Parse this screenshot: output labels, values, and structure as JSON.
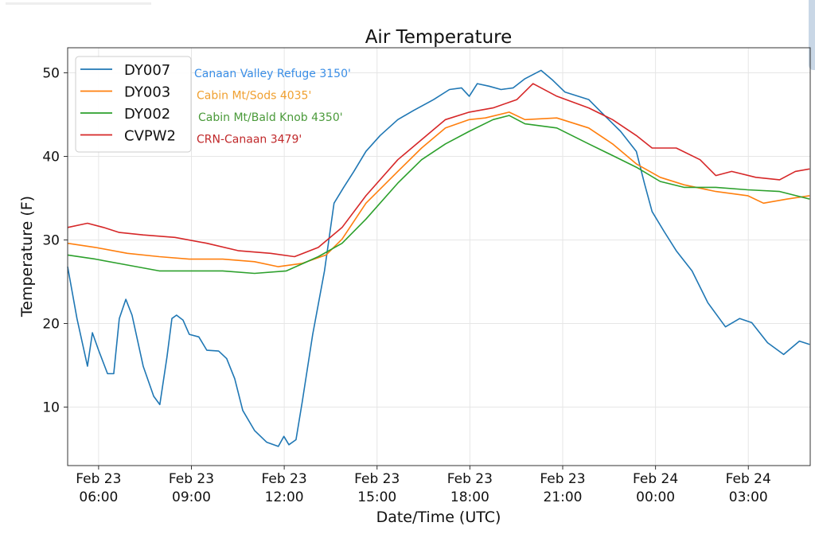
{
  "chart_data": {
    "type": "line",
    "title": "Air Temperature",
    "xlabel": "Date/Time (UTC)",
    "ylabel": "Temperature (F)",
    "x_units": "hours since Feb 23 00:00 UTC",
    "xlim": [
      5.0,
      29.0
    ],
    "ylim": [
      3,
      53
    ],
    "grid": true,
    "legend_placement": "top-left",
    "yticks": [
      {
        "value": 10,
        "label": "10"
      },
      {
        "value": 20,
        "label": "20"
      },
      {
        "value": 30,
        "label": "30"
      },
      {
        "value": 40,
        "label": "40"
      },
      {
        "value": 50,
        "label": "50"
      }
    ],
    "xticks": [
      {
        "value": 6,
        "line1": "Feb 23",
        "line2": "06:00"
      },
      {
        "value": 9,
        "line1": "Feb 23",
        "line2": "09:00"
      },
      {
        "value": 12,
        "line1": "Feb 23",
        "line2": "12:00"
      },
      {
        "value": 15,
        "line1": "Feb 23",
        "line2": "15:00"
      },
      {
        "value": 18,
        "line1": "Feb 23",
        "line2": "18:00"
      },
      {
        "value": 21,
        "line1": "Feb 23",
        "line2": "21:00"
      },
      {
        "value": 24,
        "line1": "Feb 24",
        "line2": "00:00"
      },
      {
        "value": 27,
        "line1": "Feb 24",
        "line2": "03:00"
      }
    ],
    "series": [
      {
        "name": "DY007",
        "annotation": "Canaan Valley Refuge 3150'",
        "color": "#1f77b4",
        "annotation_color": "#3a8ee6",
        "points": [
          [
            5.0,
            26.8
          ],
          [
            5.3,
            20.6
          ],
          [
            5.64,
            14.9
          ],
          [
            5.8,
            18.9
          ],
          [
            6.0,
            16.8
          ],
          [
            6.29,
            14
          ],
          [
            6.49,
            14
          ],
          [
            6.67,
            20.6
          ],
          [
            6.88,
            22.9
          ],
          [
            7.08,
            21
          ],
          [
            7.44,
            14.9
          ],
          [
            7.78,
            11.3
          ],
          [
            7.98,
            10.3
          ],
          [
            8.21,
            16
          ],
          [
            8.37,
            20.6
          ],
          [
            8.52,
            21
          ],
          [
            8.73,
            20.4
          ],
          [
            8.93,
            18.7
          ],
          [
            9.24,
            18.4
          ],
          [
            9.5,
            16.8
          ],
          [
            9.88,
            16.7
          ],
          [
            10.14,
            15.8
          ],
          [
            10.4,
            13.4
          ],
          [
            10.66,
            9.6
          ],
          [
            11.04,
            7.2
          ],
          [
            11.43,
            5.8
          ],
          [
            11.81,
            5.3
          ],
          [
            11.99,
            6.5
          ],
          [
            12.15,
            5.5
          ],
          [
            12.38,
            6.1
          ],
          [
            12.58,
            10.6
          ],
          [
            12.92,
            18.7
          ],
          [
            13.3,
            26.3
          ],
          [
            13.61,
            34.4
          ],
          [
            13.92,
            36.3
          ],
          [
            14.25,
            38.2
          ],
          [
            14.64,
            40.6
          ],
          [
            15.1,
            42.5
          ],
          [
            15.67,
            44.4
          ],
          [
            16.18,
            45.5
          ],
          [
            16.83,
            46.8
          ],
          [
            17.34,
            48
          ],
          [
            17.73,
            48.2
          ],
          [
            17.98,
            47.2
          ],
          [
            18.24,
            48.7
          ],
          [
            18.62,
            48.4
          ],
          [
            19.01,
            48
          ],
          [
            19.4,
            48.2
          ],
          [
            19.78,
            49.3
          ],
          [
            20.3,
            50.3
          ],
          [
            20.68,
            49.1
          ],
          [
            21.07,
            47.7
          ],
          [
            21.84,
            46.8
          ],
          [
            22.35,
            44.9
          ],
          [
            22.87,
            43
          ],
          [
            23.38,
            40.6
          ],
          [
            23.64,
            36.8
          ],
          [
            23.89,
            33.4
          ],
          [
            24.28,
            31
          ],
          [
            24.67,
            28.7
          ],
          [
            25.18,
            26.3
          ],
          [
            25.69,
            22.5
          ],
          [
            26.26,
            19.6
          ],
          [
            26.72,
            20.6
          ],
          [
            27.11,
            20.1
          ],
          [
            27.62,
            17.7
          ],
          [
            28.14,
            16.3
          ],
          [
            28.65,
            17.9
          ],
          [
            28.98,
            17.5
          ]
        ]
      },
      {
        "name": "DY003",
        "annotation": "Cabin Mt/Sods 4035'",
        "color": "#ff7f0e",
        "annotation_color": "#f0a030",
        "points": [
          [
            5.0,
            29.6
          ],
          [
            5.9,
            29.1
          ],
          [
            6.93,
            28.4
          ],
          [
            7.96,
            28
          ],
          [
            8.93,
            27.7
          ],
          [
            10.01,
            27.7
          ],
          [
            11.04,
            27.4
          ],
          [
            11.81,
            26.8
          ],
          [
            12.58,
            27.2
          ],
          [
            13.35,
            28.2
          ],
          [
            13.87,
            30.1
          ],
          [
            14.64,
            34.4
          ],
          [
            15.67,
            38.2
          ],
          [
            16.44,
            41
          ],
          [
            17.21,
            43.4
          ],
          [
            17.98,
            44.4
          ],
          [
            18.5,
            44.6
          ],
          [
            19.27,
            45.3
          ],
          [
            19.78,
            44.4
          ],
          [
            20.81,
            44.6
          ],
          [
            21.84,
            43.4
          ],
          [
            22.61,
            41.5
          ],
          [
            23.38,
            39.1
          ],
          [
            24.15,
            37.5
          ],
          [
            24.92,
            36.6
          ],
          [
            25.95,
            35.8
          ],
          [
            26.98,
            35.3
          ],
          [
            27.49,
            34.4
          ],
          [
            28.26,
            34.9
          ],
          [
            28.98,
            35.3
          ]
        ]
      },
      {
        "name": "DY002",
        "annotation": "Cabin Mt/Bald Knob 4350'",
        "color": "#2ca02c",
        "annotation_color": "#4a9a3a",
        "points": [
          [
            5.0,
            28.2
          ],
          [
            5.9,
            27.7
          ],
          [
            6.93,
            27
          ],
          [
            7.96,
            26.3
          ],
          [
            8.98,
            26.3
          ],
          [
            10.01,
            26.3
          ],
          [
            11.04,
            26
          ],
          [
            12.07,
            26.3
          ],
          [
            13.1,
            28
          ],
          [
            13.87,
            29.6
          ],
          [
            14.64,
            32.5
          ],
          [
            15.67,
            36.8
          ],
          [
            16.44,
            39.6
          ],
          [
            17.21,
            41.5
          ],
          [
            17.98,
            43
          ],
          [
            18.75,
            44.4
          ],
          [
            19.27,
            44.9
          ],
          [
            19.78,
            43.9
          ],
          [
            20.81,
            43.4
          ],
          [
            21.84,
            41.5
          ],
          [
            22.61,
            40.1
          ],
          [
            23.38,
            38.7
          ],
          [
            24.15,
            37
          ],
          [
            24.92,
            36.3
          ],
          [
            25.95,
            36.3
          ],
          [
            26.98,
            36
          ],
          [
            28.01,
            35.8
          ],
          [
            28.98,
            34.9
          ]
        ]
      },
      {
        "name": "CVPW2",
        "annotation": "CRN-Canaan 3479'",
        "color": "#d62728",
        "annotation_color": "#c0282a",
        "points": [
          [
            5.0,
            31.5
          ],
          [
            5.64,
            32
          ],
          [
            6.16,
            31.5
          ],
          [
            6.67,
            30.9
          ],
          [
            7.44,
            30.6
          ],
          [
            8.47,
            30.3
          ],
          [
            9.5,
            29.6
          ],
          [
            10.53,
            28.7
          ],
          [
            11.56,
            28.4
          ],
          [
            12.33,
            28
          ],
          [
            13.1,
            29.1
          ],
          [
            13.87,
            31.5
          ],
          [
            14.64,
            35.3
          ],
          [
            15.67,
            39.6
          ],
          [
            16.44,
            42
          ],
          [
            17.21,
            44.4
          ],
          [
            17.98,
            45.3
          ],
          [
            18.75,
            45.8
          ],
          [
            19.52,
            46.8
          ],
          [
            20.04,
            48.7
          ],
          [
            20.81,
            47.2
          ],
          [
            21.84,
            45.8
          ],
          [
            22.61,
            44.4
          ],
          [
            23.38,
            42.5
          ],
          [
            23.89,
            41
          ],
          [
            24.67,
            41
          ],
          [
            25.44,
            39.6
          ],
          [
            25.95,
            37.7
          ],
          [
            26.46,
            38.2
          ],
          [
            27.24,
            37.5
          ],
          [
            28.01,
            37.2
          ],
          [
            28.52,
            38.2
          ],
          [
            28.98,
            38.5
          ]
        ]
      }
    ]
  }
}
